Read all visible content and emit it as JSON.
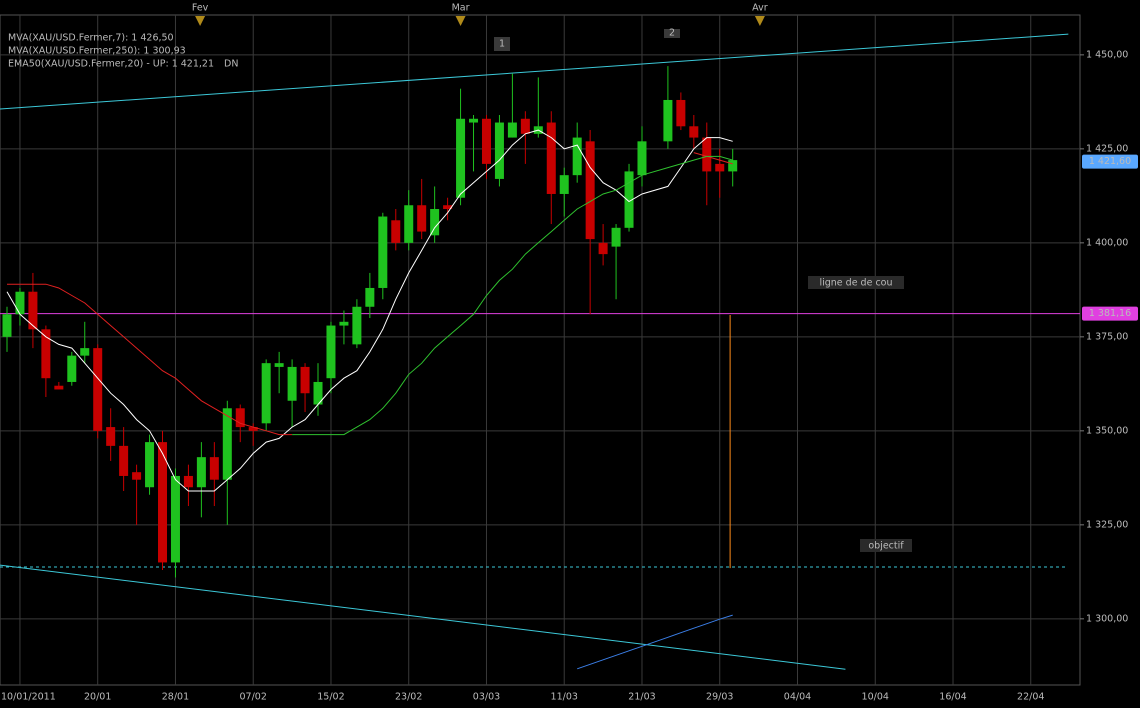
{
  "chart_data": {
    "type": "candlestick",
    "x": [
      0,
      1,
      2,
      3,
      4,
      5,
      6,
      7,
      8,
      9,
      10,
      11,
      12,
      13,
      14,
      15,
      16,
      17,
      18,
      19,
      20,
      21,
      22,
      23,
      24,
      25,
      26,
      27,
      28,
      29,
      30,
      31,
      32,
      33,
      34,
      35,
      36,
      37,
      38,
      39,
      40,
      41,
      42,
      43,
      44,
      45,
      46,
      47,
      48,
      49,
      51,
      52,
      53,
      54,
      55,
      56
    ],
    "open": [
      1375,
      1381,
      1387,
      1377,
      1362,
      1363,
      1370,
      1372,
      1351,
      1346,
      1339,
      1335,
      1347,
      1315,
      1338,
      1335,
      1343,
      1337,
      1356,
      1351,
      1352,
      1367,
      1358,
      1367,
      1357,
      1364,
      1378,
      1373,
      1383,
      1388,
      1406,
      1400,
      1410,
      1402,
      1410,
      1412,
      1432,
      1433,
      1417,
      1428,
      1433,
      1429,
      1432,
      1413,
      1418,
      1427,
      1400,
      1399,
      1404,
      1418,
      1427,
      1438,
      1431,
      1428,
      1421,
      1419
    ],
    "high": [
      1383,
      1388,
      1392,
      1378,
      1363,
      1371,
      1379,
      1373,
      1356,
      1351,
      1341,
      1349,
      1350,
      1340,
      1341,
      1347,
      1347,
      1358,
      1357,
      1352,
      1369,
      1371,
      1369,
      1368,
      1368,
      1379,
      1382,
      1385,
      1392,
      1408,
      1409,
      1414,
      1417,
      1415,
      1412,
      1441,
      1434,
      1434,
      1434,
      1445,
      1435,
      1444,
      1435,
      1420,
      1432,
      1430,
      1405,
      1405,
      1421,
      1431,
      1447,
      1440,
      1434,
      1432,
      1425,
      1425
    ],
    "low": [
      1371,
      1378,
      1372,
      1359,
      1361,
      1362,
      1368,
      1348,
      1342,
      1334,
      1325,
      1333,
      1313,
      1311,
      1330,
      1327,
      1330,
      1325,
      1347,
      1346,
      1350,
      1360,
      1351,
      1355,
      1354,
      1360,
      1373,
      1372,
      1380,
      1385,
      1398,
      1398,
      1401,
      1400,
      1406,
      1410,
      1419,
      1417,
      1415,
      1428,
      1421,
      1428,
      1405,
      1407,
      1416,
      1381,
      1394,
      1385,
      1403,
      1415,
      1425,
      1430,
      1425,
      1410,
      1412,
      1415
    ],
    "close": [
      1381,
      1387,
      1377,
      1364,
      1361,
      1370,
      1372,
      1350,
      1346,
      1338,
      1337,
      1347,
      1315,
      1338,
      1335,
      1343,
      1337,
      1356,
      1351,
      1350,
      1368,
      1368,
      1367,
      1360,
      1363,
      1378,
      1379,
      1383,
      1388,
      1407,
      1400,
      1410,
      1403,
      1409,
      1409,
      1433,
      1433,
      1421,
      1432,
      1432,
      1429,
      1431,
      1413,
      1418,
      1428,
      1401,
      1397,
      1404,
      1419,
      1427,
      1438,
      1431,
      1428,
      1419,
      1419,
      1422
    ],
    "up_color": "#1fc21f",
    "down_color": "#c80000",
    "lines": [
      {
        "name": "MVA(XAU/USD.Fermer,7): 1 426,50",
        "color": "#ffffff",
        "values": [
          1387,
          1381,
          1378,
          1375,
          1373,
          1372,
          1368,
          1364,
          1360,
          1357,
          1353,
          1350,
          1344,
          1337,
          1334,
          1334,
          1334,
          1337,
          1340,
          1344,
          1347,
          1348,
          1351,
          1353,
          1357,
          1361,
          1364,
          1366,
          1371,
          1377,
          1385,
          1392,
          1398,
          1404,
          1408,
          1413,
          1416,
          1419,
          1422,
          1426,
          1429,
          1430,
          1428,
          1425,
          1426,
          1420,
          1416,
          1414,
          1411,
          1413,
          1415,
          1420,
          1425,
          1428,
          1428,
          1427
        ]
      },
      {
        "name": "MVA(XAU/USD.Fermer,250): 1 300,93",
        "color": "#3b7fe8",
        "values": [
          null,
          null,
          null,
          null,
          null,
          null,
          null,
          null,
          null,
          null,
          null,
          null,
          null,
          null,
          null,
          null,
          null,
          null,
          null,
          null,
          null,
          null,
          null,
          null,
          null,
          null,
          null,
          null,
          null,
          null,
          null,
          null,
          null,
          null,
          null,
          null,
          null,
          null,
          null,
          null,
          null,
          null,
          null,
          null,
          1286.7,
          1287.9,
          1289.1,
          1290.3,
          1291.5,
          1292.7,
          1295.1,
          1296.3,
          1297.5,
          1298.7,
          1299.9,
          1301
        ]
      },
      {
        "name": "EMA50(XAU/USD.Fermer,20) - UP: 1 421,21",
        "color": "#e02020",
        "values": [
          1389,
          1389,
          1389,
          1389,
          1388,
          1386,
          1384,
          1381,
          1378,
          1375,
          1372,
          1369,
          1366,
          1364,
          1361,
          1358,
          1356,
          1354,
          1352,
          1351,
          1350,
          1349,
          1349,
          null,
          null,
          null,
          null,
          null,
          null,
          null,
          null,
          null,
          null,
          null,
          null,
          null,
          null,
          null,
          null,
          null,
          null,
          null,
          null,
          null,
          null,
          null,
          null,
          null,
          null,
          null,
          null,
          null,
          1424,
          1423,
          1422,
          1421
        ]
      },
      {
        "color": "#2fc22f",
        "values": [
          null,
          null,
          null,
          null,
          null,
          null,
          null,
          null,
          null,
          null,
          null,
          null,
          null,
          null,
          null,
          null,
          null,
          null,
          null,
          null,
          null,
          null,
          1349,
          1349,
          1349,
          1349,
          1349,
          1351,
          1353,
          1356,
          1360,
          1365,
          1368,
          1372,
          1375,
          1378,
          1381,
          1386,
          1390,
          1393,
          1397,
          1400,
          1403,
          1406,
          1409,
          1411,
          1413,
          1414,
          1416,
          1418,
          1420,
          1421,
          1422,
          1423,
          1423,
          1422
        ]
      }
    ],
    "trend_flag": "DN",
    "trend_flag_color": "#22dd22",
    "drawings": [
      {
        "x": [
          -0.54,
          81.9
        ],
        "values": [
          1435.6,
          1455.5
        ],
        "color": "#3cc8d8",
        "dashed": false
      },
      {
        "x": [
          -0.54,
          64.7
        ],
        "values": [
          1314.3,
          1286.6
        ],
        "color": "#3cc8d8",
        "dashed": false
      },
      {
        "x": [
          -0.54,
          81.7
        ],
        "values": [
          1313.8,
          1313.8
        ],
        "color": "#3cc8d8",
        "dashed": true
      },
      {
        "x": [
          55.8,
          55.8
        ],
        "values": [
          1380.8,
          1313.5
        ],
        "color": "#ff8c1a",
        "dashed": false
      }
    ],
    "neckline": {
      "value": 1381.16,
      "label": "1 381,16",
      "color": "#e040e0"
    },
    "last_price": {
      "value": 1421.6,
      "label": "1 421,60",
      "color": "#5aa8ff"
    },
    "annotations": [
      {
        "text": "ligne de de cou",
        "color": "#ff40ff"
      },
      {
        "text": "objectif",
        "color": "#40ff40"
      },
      {
        "text": "1",
        "color": "#d070ff"
      },
      {
        "text": "2",
        "color": "#d070ff"
      }
    ],
    "xlim": [
      -0.54,
      82.8
    ],
    "ylim": [
      1282.4,
      1460.6
    ],
    "yticks": [
      {
        "value": 1300,
        "label": "1 300,00"
      },
      {
        "value": 1325,
        "label": "1 325,00"
      },
      {
        "value": 1350,
        "label": "1 350,00"
      },
      {
        "value": 1375,
        "label": "1 375,00"
      },
      {
        "value": 1400,
        "label": "1 400,00"
      },
      {
        "value": 1425,
        "label": "1 425,00"
      },
      {
        "value": 1450,
        "label": "1 450,00"
      }
    ],
    "xticks": [
      {
        "value": 1,
        "label": "10/01/2011"
      },
      {
        "value": 7,
        "label": "20/01"
      },
      {
        "value": 13,
        "label": "28/01"
      },
      {
        "value": 19,
        "label": "07/02"
      },
      {
        "value": 25,
        "label": "15/02"
      },
      {
        "value": 31,
        "label": "23/02"
      },
      {
        "value": 37,
        "label": "03/03"
      },
      {
        "value": 43,
        "label": "11/03"
      },
      {
        "value": 49,
        "label": "21/03"
      },
      {
        "value": 55,
        "label": "29/03"
      },
      {
        "value": 61,
        "label": "04/04"
      },
      {
        "value": 67,
        "label": "10/04"
      },
      {
        "value": 73,
        "label": "16/04"
      },
      {
        "value": 79,
        "label": "22/04"
      }
    ],
    "month_ticks": [
      {
        "value": 14.9,
        "label": "Fev"
      },
      {
        "value": 35,
        "label": "Mar"
      },
      {
        "value": 58.1,
        "label": "Avr"
      }
    ],
    "grid": true
  }
}
